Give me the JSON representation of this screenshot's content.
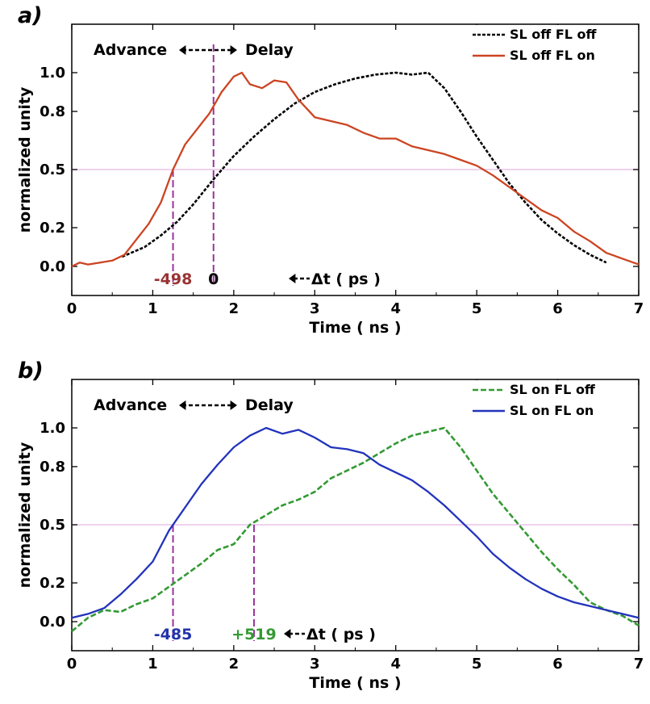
{
  "chart_data": [
    {
      "type": "line",
      "panel": "a)",
      "xlabel": "Time ( ns )",
      "ylabel": "normalized unity",
      "xlim": [
        0,
        7
      ],
      "ylim": [
        -0.15,
        1.25
      ],
      "xticks": [
        "0",
        "1",
        "2",
        "3",
        "4",
        "5",
        "6",
        "7"
      ],
      "yticks": [
        "0.0",
        "0.2",
        "0.5",
        "0.8",
        "1.0"
      ],
      "ytick_values": [
        0.0,
        0.2,
        0.5,
        0.8,
        1.0
      ],
      "yticks_highlight": "0.5",
      "half_max_line": 0.5,
      "legend": "top-right",
      "series": [
        {
          "name": "SL off   FL off",
          "style": "dashed",
          "color": "#000000",
          "x": [
            0.62,
            0.9,
            1.1,
            1.3,
            1.5,
            1.75,
            2.0,
            2.25,
            2.5,
            2.75,
            3.0,
            3.25,
            3.5,
            3.75,
            4.0,
            4.2,
            4.4,
            4.6,
            4.8,
            5.0,
            5.2,
            5.4,
            5.6,
            5.8,
            6.0,
            6.2,
            6.4,
            6.6
          ],
          "y": [
            0.05,
            0.1,
            0.16,
            0.23,
            0.32,
            0.45,
            0.57,
            0.67,
            0.76,
            0.84,
            0.9,
            0.94,
            0.97,
            0.99,
            1.0,
            0.99,
            1.0,
            0.92,
            0.8,
            0.67,
            0.55,
            0.43,
            0.33,
            0.24,
            0.17,
            0.11,
            0.06,
            0.02
          ]
        },
        {
          "name": "SL off   FL on",
          "style": "solid",
          "color": "#cc4422",
          "x": [
            0.0,
            0.1,
            0.2,
            0.35,
            0.5,
            0.65,
            0.8,
            0.95,
            1.1,
            1.25,
            1.4,
            1.55,
            1.7,
            1.85,
            2.0,
            2.1,
            2.2,
            2.35,
            2.5,
            2.65,
            2.8,
            3.0,
            3.2,
            3.4,
            3.6,
            3.8,
            4.0,
            4.2,
            4.4,
            4.6,
            4.8,
            5.0,
            5.2,
            5.4,
            5.6,
            5.8,
            6.0,
            6.2,
            6.4,
            6.6,
            6.8,
            7.0
          ],
          "y": [
            0.0,
            0.02,
            0.01,
            0.02,
            0.03,
            0.06,
            0.14,
            0.22,
            0.33,
            0.5,
            0.63,
            0.71,
            0.79,
            0.9,
            0.98,
            1.0,
            0.94,
            0.92,
            0.96,
            0.95,
            0.86,
            0.77,
            0.75,
            0.73,
            0.69,
            0.66,
            0.66,
            0.62,
            0.6,
            0.58,
            0.55,
            0.52,
            0.47,
            0.41,
            0.35,
            0.29,
            0.25,
            0.18,
            0.13,
            0.07,
            0.04,
            0.01
          ]
        }
      ],
      "markers": [
        {
          "x": 1.25,
          "y": 0.5,
          "label": "-498",
          "color": "#993333"
        },
        {
          "x": 1.75,
          "y": 0.5,
          "label": "0",
          "color": "#000000"
        }
      ],
      "annotations": {
        "advance": "Advance",
        "delay": "Delay",
        "delta": "Δt ( ps )"
      }
    },
    {
      "type": "line",
      "panel": "b)",
      "xlabel": "Time ( ns )",
      "ylabel": "normalized unity",
      "xlim": [
        0,
        7
      ],
      "ylim": [
        -0.15,
        1.25
      ],
      "xticks": [
        "0",
        "1",
        "2",
        "3",
        "4",
        "5",
        "6",
        "7"
      ],
      "yticks": [
        "0.0",
        "0.2",
        "0.5",
        "0.8",
        "1.0"
      ],
      "ytick_values": [
        0.0,
        0.2,
        0.5,
        0.8,
        1.0
      ],
      "yticks_highlight": "0.5",
      "half_max_line": 0.5,
      "legend": "top-right",
      "series": [
        {
          "name": "SL on   FL off",
          "style": "dashed",
          "color": "#339933",
          "x": [
            0.0,
            0.2,
            0.4,
            0.6,
            0.8,
            1.0,
            1.2,
            1.4,
            1.6,
            1.8,
            2.0,
            2.2,
            2.4,
            2.6,
            2.8,
            3.0,
            3.2,
            3.4,
            3.6,
            3.8,
            4.0,
            4.2,
            4.4,
            4.6,
            4.8,
            5.0,
            5.2,
            5.4,
            5.6,
            5.8,
            6.0,
            6.2,
            6.4,
            6.6,
            6.8,
            7.0
          ],
          "y": [
            -0.05,
            0.02,
            0.06,
            0.05,
            0.09,
            0.12,
            0.18,
            0.24,
            0.3,
            0.37,
            0.4,
            0.5,
            0.55,
            0.6,
            0.63,
            0.67,
            0.74,
            0.78,
            0.82,
            0.87,
            0.92,
            0.96,
            0.98,
            1.0,
            0.9,
            0.78,
            0.66,
            0.56,
            0.46,
            0.36,
            0.27,
            0.19,
            0.1,
            0.06,
            0.03,
            -0.02
          ]
        },
        {
          "name": "SL on   FL on",
          "style": "solid",
          "color": "#2233bb",
          "x": [
            0.0,
            0.2,
            0.4,
            0.6,
            0.8,
            1.0,
            1.2,
            1.4,
            1.6,
            1.8,
            2.0,
            2.2,
            2.4,
            2.6,
            2.8,
            3.0,
            3.2,
            3.4,
            3.6,
            3.8,
            4.0,
            4.2,
            4.4,
            4.6,
            4.8,
            5.0,
            5.2,
            5.4,
            5.6,
            5.8,
            6.0,
            6.2,
            6.4,
            6.6,
            6.8,
            7.0
          ],
          "y": [
            0.02,
            0.04,
            0.07,
            0.14,
            0.22,
            0.31,
            0.47,
            0.59,
            0.71,
            0.81,
            0.9,
            0.96,
            1.0,
            0.97,
            0.99,
            0.95,
            0.9,
            0.89,
            0.87,
            0.81,
            0.77,
            0.73,
            0.67,
            0.6,
            0.52,
            0.44,
            0.35,
            0.28,
            0.22,
            0.17,
            0.13,
            0.1,
            0.08,
            0.06,
            0.04,
            0.02
          ]
        }
      ],
      "markers": [
        {
          "x": 1.25,
          "y": 0.5,
          "label": "-485",
          "color": "#2233aa"
        },
        {
          "x": 2.25,
          "y": 0.5,
          "label": "+519",
          "color": "#339933"
        }
      ],
      "annotations": {
        "advance": "Advance",
        "delay": "Delay",
        "delta": "Δt ( ps )"
      }
    }
  ]
}
